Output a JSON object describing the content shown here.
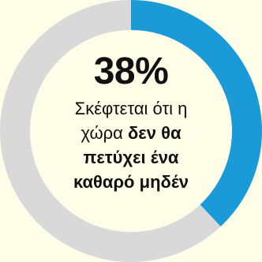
{
  "chart_data": {
    "type": "pie",
    "donut": true,
    "categories": [
      "Σκέφτεται ότι η χώρα δεν θα πετύχει ένα καθαρό μηδέν",
      ""
    ],
    "values": [
      38,
      62
    ],
    "colors": [
      "#1b9ad8",
      "#d9d9d9"
    ],
    "center_value": "38%",
    "center_text": {
      "line1": "Σκέφτεται ότι η",
      "line2_plain": "χώρα ",
      "line2_bold": "δεν θα",
      "line3_bold": "πετύχει ένα",
      "line4_bold": "καθαρό μηδέν"
    }
  }
}
